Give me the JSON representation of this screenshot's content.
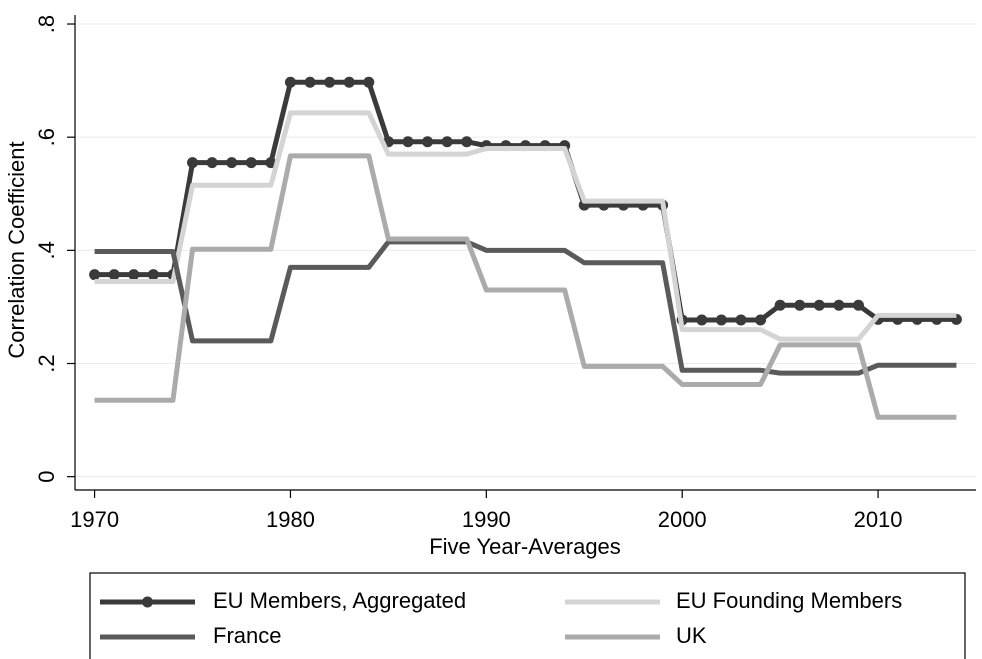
{
  "chart_data": {
    "type": "line",
    "xlabel": "Five Year-Averages",
    "ylabel": "Correlation Coefficient",
    "x": [
      1970,
      1971,
      1972,
      1973,
      1974,
      1975,
      1976,
      1977,
      1978,
      1979,
      1980,
      1981,
      1982,
      1983,
      1984,
      1985,
      1986,
      1987,
      1988,
      1989,
      1990,
      1991,
      1992,
      1993,
      1994,
      1995,
      1996,
      1997,
      1998,
      1999,
      2000,
      2001,
      2002,
      2003,
      2004,
      2005,
      2006,
      2007,
      2008,
      2009,
      2010,
      2011,
      2012,
      2013,
      2014
    ],
    "series": [
      {
        "name": "EU Members, Aggregated",
        "color": "#3a3a3a",
        "marker": "circle",
        "values": [
          0.357,
          0.357,
          0.357,
          0.357,
          0.357,
          0.555,
          0.555,
          0.555,
          0.555,
          0.555,
          0.697,
          0.697,
          0.697,
          0.697,
          0.697,
          0.592,
          0.592,
          0.592,
          0.592,
          0.592,
          0.585,
          0.585,
          0.585,
          0.585,
          0.585,
          0.48,
          0.48,
          0.48,
          0.48,
          0.48,
          0.277,
          0.277,
          0.277,
          0.277,
          0.277,
          0.303,
          0.303,
          0.303,
          0.303,
          0.303,
          0.278,
          0.278,
          0.278,
          0.278,
          0.278
        ]
      },
      {
        "name": "EU Founding Members",
        "color": "#d4d4d4",
        "values": [
          0.345,
          0.345,
          0.345,
          0.345,
          0.345,
          0.515,
          0.515,
          0.515,
          0.515,
          0.515,
          0.643,
          0.643,
          0.643,
          0.643,
          0.643,
          0.57,
          0.57,
          0.57,
          0.57,
          0.57,
          0.58,
          0.58,
          0.58,
          0.58,
          0.58,
          0.487,
          0.487,
          0.487,
          0.487,
          0.487,
          0.26,
          0.26,
          0.26,
          0.26,
          0.26,
          0.243,
          0.243,
          0.243,
          0.243,
          0.243,
          0.285,
          0.285,
          0.285,
          0.285,
          0.285
        ]
      },
      {
        "name": "France",
        "color": "#5a5a5a",
        "values": [
          0.398,
          0.398,
          0.398,
          0.398,
          0.398,
          0.24,
          0.24,
          0.24,
          0.24,
          0.24,
          0.37,
          0.37,
          0.37,
          0.37,
          0.37,
          0.415,
          0.415,
          0.415,
          0.415,
          0.415,
          0.4,
          0.4,
          0.4,
          0.4,
          0.4,
          0.378,
          0.378,
          0.378,
          0.378,
          0.378,
          0.188,
          0.188,
          0.188,
          0.188,
          0.188,
          0.183,
          0.183,
          0.183,
          0.183,
          0.183,
          0.197,
          0.197,
          0.197,
          0.197,
          0.197
        ]
      },
      {
        "name": "UK",
        "color": "#ababab",
        "values": [
          0.135,
          0.135,
          0.135,
          0.135,
          0.135,
          0.402,
          0.402,
          0.402,
          0.402,
          0.402,
          0.567,
          0.567,
          0.567,
          0.567,
          0.567,
          0.42,
          0.42,
          0.42,
          0.42,
          0.42,
          0.33,
          0.33,
          0.33,
          0.33,
          0.33,
          0.195,
          0.195,
          0.195,
          0.195,
          0.195,
          0.163,
          0.163,
          0.163,
          0.163,
          0.163,
          0.233,
          0.233,
          0.233,
          0.233,
          0.233,
          0.105,
          0.105,
          0.105,
          0.105,
          0.105
        ]
      }
    ],
    "xlim": [
      1969,
      2015
    ],
    "ylim": [
      -0.02,
      0.82
    ],
    "xticks": [
      1970,
      1980,
      1990,
      2000,
      2010
    ],
    "yticks": [
      0,
      {
        "value": 0.2,
        "label": ".2"
      },
      {
        "value": 0.4,
        "label": ".4"
      },
      {
        "value": 0.6,
        "label": ".6"
      },
      {
        "value": 0.8,
        "label": ".8"
      }
    ],
    "grid": true,
    "legend": "bottom"
  }
}
